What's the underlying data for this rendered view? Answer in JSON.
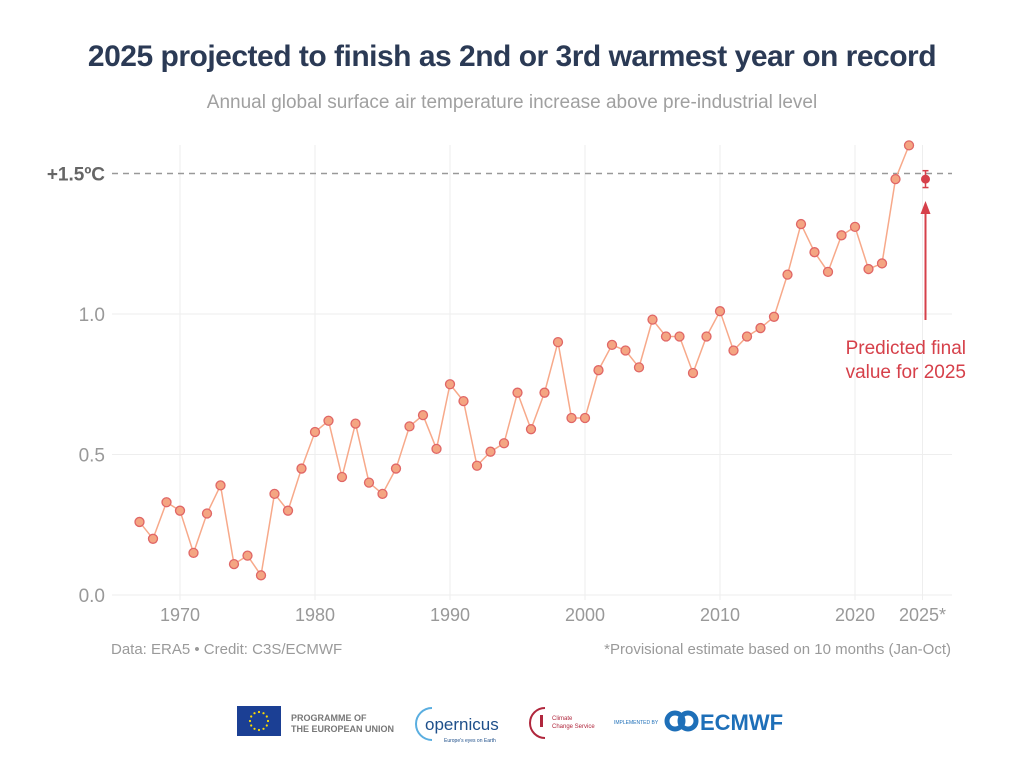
{
  "title": "2025 projected to finish as 2nd or 3rd warmest year on record",
  "subtitle": "Annual global surface air temperature increase above pre-industrial level",
  "footer": {
    "source": "Data: ERA5 • Credit: C3S/ECMWF",
    "note": "*Provisional estimate based on 10 months (Jan-Oct)"
  },
  "logos": {
    "eu": "PROGRAMME OF THE EUROPEAN UNION",
    "copernicus": "opernicus",
    "copernicus_tagline": "Europe's eyes on Earth",
    "c3s": "Climate Change Service",
    "implemented_by": "IMPLEMENTED BY",
    "ecmwf": "ECMWF"
  },
  "colors": {
    "title": "#2b3a55",
    "series_fill": "#f4a582",
    "series_stroke": "#e06666",
    "line": "#f7a98a",
    "prediction": "#d6404a",
    "grid": "#eeeeee",
    "threshold": "#999999"
  },
  "chart_data": {
    "type": "line",
    "title": "2025 projected to finish as 2nd or 3rd warmest year on record",
    "subtitle": "Annual global surface air temperature increase above pre-industrial level",
    "xlim": [
      1966,
      2027
    ],
    "ylim": [
      0,
      1.6
    ],
    "grid": true,
    "x_ticks": [
      {
        "value": 1970,
        "label": "1970"
      },
      {
        "value": 1980,
        "label": "1980"
      },
      {
        "value": 1990,
        "label": "1990"
      },
      {
        "value": 2000,
        "label": "2000"
      },
      {
        "value": 2010,
        "label": "2010"
      },
      {
        "value": 2020,
        "label": "2020"
      },
      {
        "value": 2025,
        "label": "2025*"
      }
    ],
    "y_ticks": [
      {
        "value": 0,
        "label": "0.0"
      },
      {
        "value": 0.5,
        "label": "0.5"
      },
      {
        "value": 1.0,
        "label": "1.0"
      },
      {
        "value": 1.5,
        "label": "+1.5ºC"
      }
    ],
    "threshold": {
      "value": 1.5,
      "label": "+1.5ºC",
      "style": "dashed"
    },
    "x": [
      1967,
      1968,
      1969,
      1970,
      1971,
      1972,
      1973,
      1974,
      1975,
      1976,
      1977,
      1978,
      1979,
      1980,
      1981,
      1982,
      1983,
      1984,
      1985,
      1986,
      1987,
      1988,
      1989,
      1990,
      1991,
      1992,
      1993,
      1994,
      1995,
      1996,
      1997,
      1998,
      1999,
      2000,
      2001,
      2002,
      2003,
      2004,
      2005,
      2006,
      2007,
      2008,
      2009,
      2010,
      2011,
      2012,
      2013,
      2014,
      2015,
      2016,
      2017,
      2018,
      2019,
      2020,
      2021,
      2022,
      2023,
      2024
    ],
    "values": [
      0.26,
      0.2,
      0.33,
      0.3,
      0.15,
      0.29,
      0.39,
      0.11,
      0.14,
      0.07,
      0.36,
      0.3,
      0.45,
      0.58,
      0.62,
      0.42,
      0.61,
      0.4,
      0.36,
      0.45,
      0.6,
      0.64,
      0.52,
      0.75,
      0.69,
      0.46,
      0.51,
      0.54,
      0.72,
      0.59,
      0.72,
      0.9,
      0.63,
      0.63,
      0.8,
      0.89,
      0.87,
      0.81,
      0.98,
      0.92,
      0.92,
      0.79,
      0.92,
      1.01,
      0.87,
      0.92,
      0.95,
      0.99,
      1.14,
      1.32,
      1.22,
      1.15,
      1.28,
      1.31,
      1.16,
      1.18,
      1.48,
      1.6
    ],
    "prediction": {
      "x": 2025,
      "value": 1.48,
      "error": 0.03,
      "annotation": [
        "Predicted final",
        "value for 2025"
      ]
    }
  }
}
